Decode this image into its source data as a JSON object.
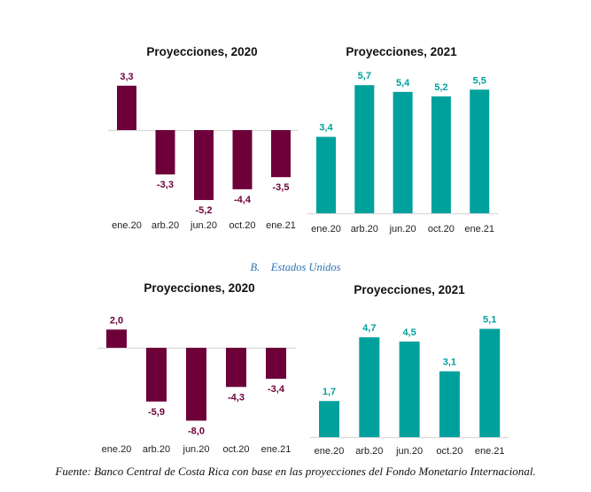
{
  "section_label": {
    "letter": "B.",
    "text": "Estados Unidos"
  },
  "source": "Fuente: Banco Central de Costa Rica con base en las proyecciones del Fondo Monetario Internacional.",
  "colors": {
    "negative_series": "#6d0039",
    "positive_series": "#00a19d",
    "axis": "#d9d9d9"
  },
  "chart_data": [
    {
      "id": "top-2020",
      "type": "bar",
      "title": "Proyecciones, 2020",
      "categories": [
        "ene.20",
        "arb.20",
        "jun.20",
        "oct.20",
        "ene.21"
      ],
      "values": [
        3.3,
        -3.3,
        -5.2,
        -4.4,
        -3.5
      ],
      "labels": [
        "3,3",
        "-3,3",
        "-5,2",
        "-4,4",
        "-3,5"
      ],
      "color": "#6d0039",
      "xlabel": "",
      "ylabel": "",
      "grid": false
    },
    {
      "id": "top-2021",
      "type": "bar",
      "title": "Proyecciones, 2021",
      "categories": [
        "ene.20",
        "arb.20",
        "jun.20",
        "oct.20",
        "ene.21"
      ],
      "values": [
        3.4,
        5.7,
        5.4,
        5.2,
        5.5
      ],
      "labels": [
        "3,4",
        "5,7",
        "5,4",
        "5,2",
        "5,5"
      ],
      "color": "#00a19d",
      "xlabel": "",
      "ylabel": "",
      "grid": false
    },
    {
      "id": "bottom-2020",
      "type": "bar",
      "title": "Proyecciones, 2020",
      "categories": [
        "ene.20",
        "arb.20",
        "jun.20",
        "oct.20",
        "ene.21"
      ],
      "values": [
        2.0,
        -5.9,
        -8.0,
        -4.3,
        -3.4
      ],
      "labels": [
        "2,0",
        "-5,9",
        "-8,0",
        "-4,3",
        "-3,4"
      ],
      "color": "#6d0039",
      "xlabel": "",
      "ylabel": "",
      "grid": false
    },
    {
      "id": "bottom-2021",
      "type": "bar",
      "title": "Proyecciones, 2021",
      "categories": [
        "ene.20",
        "arb.20",
        "jun.20",
        "oct.20",
        "ene.21"
      ],
      "values": [
        1.7,
        4.7,
        4.5,
        3.1,
        5.1
      ],
      "labels": [
        "1,7",
        "4,7",
        "4,5",
        "3,1",
        "5,1"
      ],
      "color": "#00a19d",
      "xlabel": "",
      "ylabel": "",
      "grid": false
    }
  ]
}
